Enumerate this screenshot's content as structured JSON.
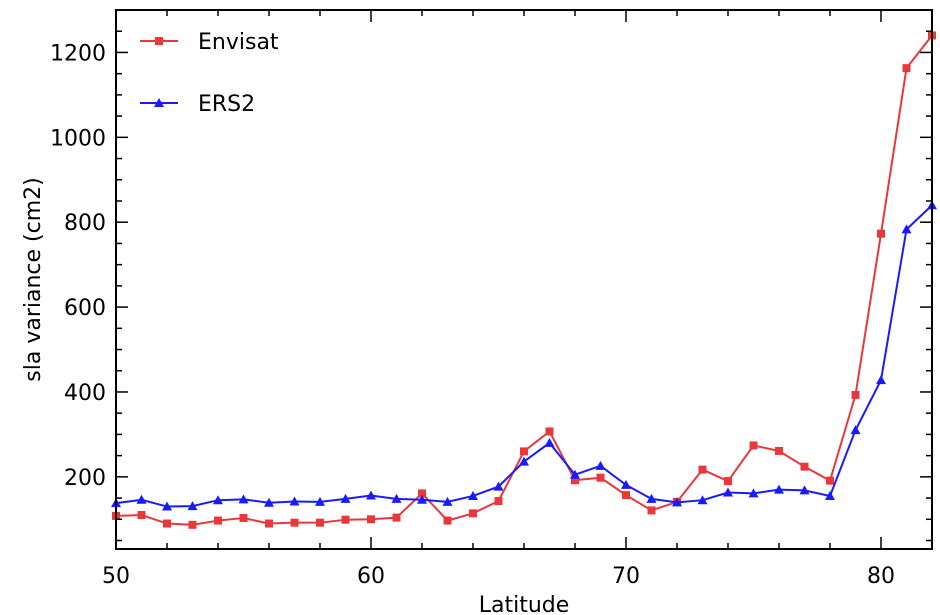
{
  "chart_data": {
    "type": "line",
    "title": "",
    "xlabel": "Latitude",
    "ylabel": "sla variance (cm2)",
    "xlim": [
      50,
      82
    ],
    "ylim": [
      30,
      1300
    ],
    "xticks": [
      50,
      60,
      70,
      80
    ],
    "yticks": [
      200,
      400,
      600,
      800,
      1000,
      1200
    ],
    "xtick_labels": [
      "50",
      "60",
      "70",
      "80"
    ],
    "ytick_labels": [
      "200",
      "400",
      "600",
      "800",
      "1000",
      "1200"
    ],
    "grid": false,
    "legend_position": "top-left",
    "x": [
      50,
      51,
      52,
      53,
      54,
      55,
      56,
      57,
      58,
      59,
      60,
      61,
      62,
      63,
      64,
      65,
      66,
      67,
      68,
      69,
      70,
      71,
      72,
      73,
      74,
      75,
      76,
      77,
      78,
      79,
      80,
      81,
      82
    ],
    "series": [
      {
        "name": "Envisat",
        "color": "#e8383c",
        "marker": "square",
        "values": [
          108,
          110,
          90,
          87,
          97,
          103,
          90,
          92,
          92,
          99,
          100,
          104,
          161,
          97,
          114,
          143,
          260,
          307,
          192,
          198,
          157,
          121,
          141,
          217,
          190,
          274,
          261,
          224,
          191,
          393,
          773,
          1163,
          1240
        ]
      },
      {
        "name": "ERS2",
        "color": "#1a1aff",
        "marker": "triangle",
        "values": [
          138,
          146,
          130,
          131,
          145,
          147,
          139,
          142,
          141,
          148,
          156,
          148,
          146,
          141,
          155,
          177,
          236,
          280,
          205,
          226,
          181,
          148,
          140,
          145,
          163,
          161,
          170,
          168,
          155,
          310,
          428,
          783,
          840
        ]
      }
    ]
  }
}
